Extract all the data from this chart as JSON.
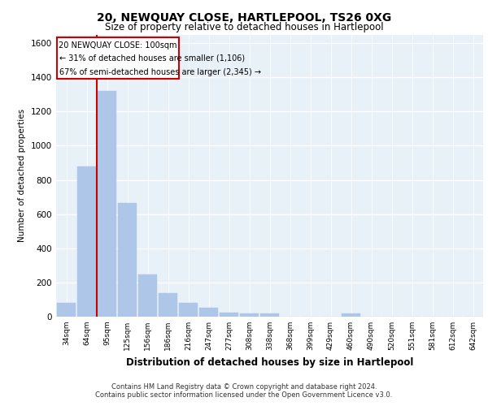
{
  "title": "20, NEWQUAY CLOSE, HARTLEPOOL, TS26 0XG",
  "subtitle": "Size of property relative to detached houses in Hartlepool",
  "xlabel": "Distribution of detached houses by size in Hartlepool",
  "ylabel": "Number of detached properties",
  "categories": [
    "34sqm",
    "64sqm",
    "95sqm",
    "125sqm",
    "156sqm",
    "186sqm",
    "216sqm",
    "247sqm",
    "277sqm",
    "308sqm",
    "338sqm",
    "368sqm",
    "399sqm",
    "429sqm",
    "460sqm",
    "490sqm",
    "520sqm",
    "551sqm",
    "581sqm",
    "612sqm",
    "642sqm"
  ],
  "values": [
    80,
    880,
    1320,
    665,
    245,
    140,
    80,
    50,
    25,
    20,
    20,
    0,
    0,
    0,
    20,
    0,
    0,
    0,
    0,
    0,
    0
  ],
  "bar_color": "#aec6e8",
  "property_line_label": "20 NEWQUAY CLOSE: 100sqm",
  "annotation_line1": "← 31% of detached houses are smaller (1,106)",
  "annotation_line2": "67% of semi-detached houses are larger (2,345) →",
  "annotation_box_color": "#cc0000",
  "ylim": [
    0,
    1650
  ],
  "yticks": [
    0,
    200,
    400,
    600,
    800,
    1000,
    1200,
    1400,
    1600
  ],
  "footer_line1": "Contains HM Land Registry data © Crown copyright and database right 2024.",
  "footer_line2": "Contains public sector information licensed under the Open Government Licence v3.0.",
  "plot_bg_color": "#e8f0f8"
}
